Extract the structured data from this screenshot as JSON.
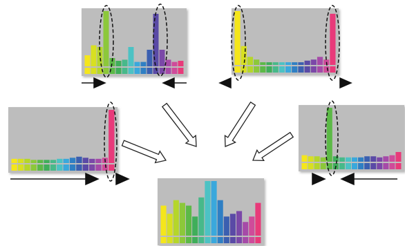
{
  "ylim": [
    0,
    100
  ],
  "colors": [
    "#f5e61b",
    "#d8e020",
    "#b5d62a",
    "#8cc83a",
    "#5cb947",
    "#3fae5a",
    "#47b98a",
    "#4cc2c4",
    "#3aa8dc",
    "#2f7fc4",
    "#3b5fb0",
    "#5a4aa6",
    "#7b48a8",
    "#a64aa8",
    "#cf4b9a",
    "#e83a7a"
  ],
  "panels": [
    {
      "values": [
        20,
        38,
        35,
        100,
        15,
        10,
        12,
        35,
        8,
        8,
        30,
        95,
        30,
        12,
        8,
        10
      ]
    },
    {
      "values": [
        100,
        35,
        15,
        10,
        5,
        5,
        5,
        5,
        5,
        5,
        5,
        8,
        10,
        15,
        10,
        95
      ]
    },
    {
      "values": [
        8,
        8,
        8,
        6,
        6,
        6,
        6,
        8,
        8,
        10,
        12,
        10,
        8,
        8,
        10,
        100
      ]
    },
    {
      "values": [
        12,
        10,
        10,
        8,
        100,
        10,
        8,
        8,
        8,
        8,
        10,
        10,
        8,
        10,
        12,
        18
      ]
    },
    {
      "values": [
        55,
        40,
        65,
        60,
        55,
        35,
        70,
        100,
        100,
        65,
        35,
        40,
        45,
        25,
        35,
        60
      ]
    }
  ]
}
